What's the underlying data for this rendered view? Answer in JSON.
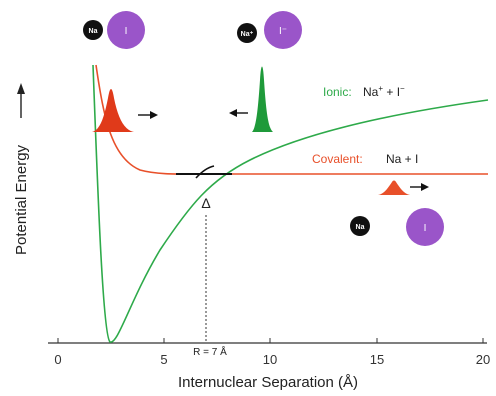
{
  "axes": {
    "x_label": "Internuclear Separation (Å)",
    "y_label": "Potential Energy",
    "y_arrow": "⟶",
    "x_ticks": [
      "0",
      "5",
      "10",
      "15",
      "20"
    ]
  },
  "curves": {
    "ionic": {
      "word": "Ionic:",
      "formula_base_1": "Na",
      "formula_sup_1": "+",
      "formula_mid": " + I",
      "formula_sup_2": "−",
      "color": "#2eaa4a"
    },
    "covalent": {
      "word": "Covalent:",
      "formula": "Na + I",
      "color": "#e8502a"
    }
  },
  "crossing": {
    "delta": "Δ",
    "r_label": "R   = 7 Å"
  },
  "atoms": {
    "na_label": "Na",
    "na_plus_label": "Na⁺",
    "i_label": "I",
    "i_minus_label": "I⁻",
    "na_color": "#111111",
    "i_color": "#9a55c9"
  },
  "wavepackets": {
    "red_color": "#e03a1a",
    "green_color": "#1f9a3a",
    "small_red_color": "#e8502a"
  }
}
